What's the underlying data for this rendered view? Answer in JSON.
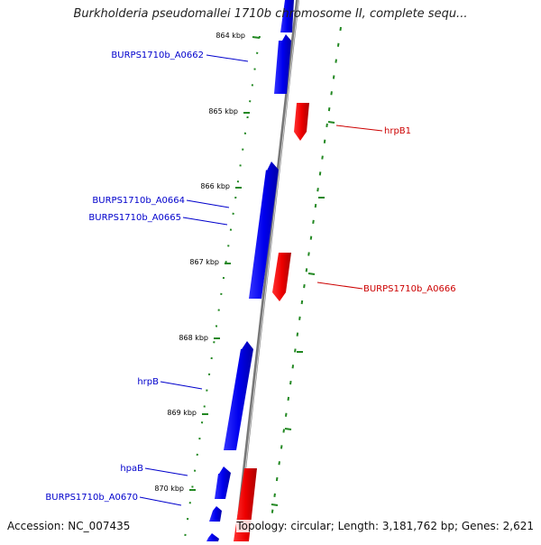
{
  "title": "Burkholderia pseudomallei 1710b chromosome II, complete sequ...",
  "ticks": [
    {
      "label": "864 kbp",
      "pos": 864
    },
    {
      "label": "865 kbp",
      "pos": 865
    },
    {
      "label": "866 kbp",
      "pos": 866
    },
    {
      "label": "867 kbp",
      "pos": 867
    },
    {
      "label": "868 kbp",
      "pos": 868
    },
    {
      "label": "869 kbp",
      "pos": 869
    },
    {
      "label": "870 kbp",
      "pos": 870
    }
  ],
  "genes": [
    {
      "name": "BURPS1710b_A0662",
      "strand": "forward",
      "color": "#0000ee"
    },
    {
      "name": "hrpB1",
      "strand": "reverse",
      "color": "#ee0000"
    },
    {
      "name": "BURPS1710b_A0664",
      "strand": "forward",
      "color": "#0000ee"
    },
    {
      "name": "BURPS1710b_A0665",
      "strand": "forward",
      "color": "#0000ee"
    },
    {
      "name": "BURPS1710b_A0666",
      "strand": "reverse",
      "color": "#ee0000"
    },
    {
      "name": "hrpB",
      "strand": "forward",
      "color": "#0000ee"
    },
    {
      "name": "hpaB",
      "strand": "forward",
      "color": "#0000ee"
    },
    {
      "name": "BURPS1710b_A0670",
      "strand": "forward",
      "color": "#0000ee"
    }
  ],
  "colors": {
    "forward": "#0000ee",
    "reverse": "#ee0000",
    "gc_ticks": "#228822",
    "backbone": "#888888"
  },
  "footer": {
    "accession": "Accession: NC_007435",
    "topology": "Topology: circular; Length: 3,181,762 bp; Genes: 2,621"
  }
}
